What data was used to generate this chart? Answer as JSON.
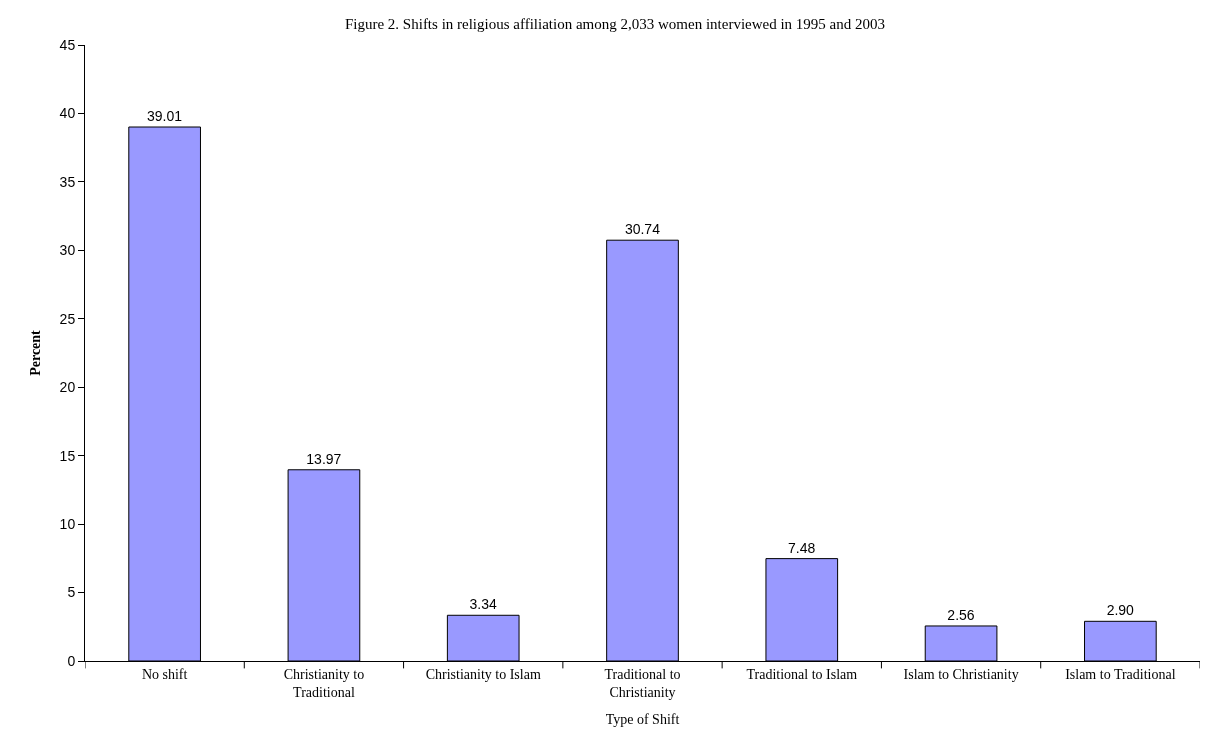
{
  "chart_data": {
    "type": "bar",
    "title": "Figure 2. Shifts in religious affiliation among 2,033 women interviewed in 1995 and 2003",
    "xlabel": "Type of Shift",
    "ylabel": "Percent",
    "categories": [
      "No shift",
      "Christianity to\nTraditional",
      "Christianity to Islam",
      "Traditional to\nChristianity",
      "Traditional to Islam",
      "Islam to Christianity",
      "Islam to Traditional"
    ],
    "values": [
      39.01,
      13.97,
      3.34,
      30.74,
      7.48,
      2.56,
      2.9
    ],
    "value_labels": [
      "39.01",
      "13.97",
      "3.34",
      "30.74",
      "7.48",
      "2.56",
      "2.90"
    ],
    "color": "#9999ff",
    "ylim": [
      0,
      45
    ],
    "yticks": [
      0,
      5,
      10,
      15,
      20,
      25,
      30,
      35,
      40,
      45
    ]
  }
}
